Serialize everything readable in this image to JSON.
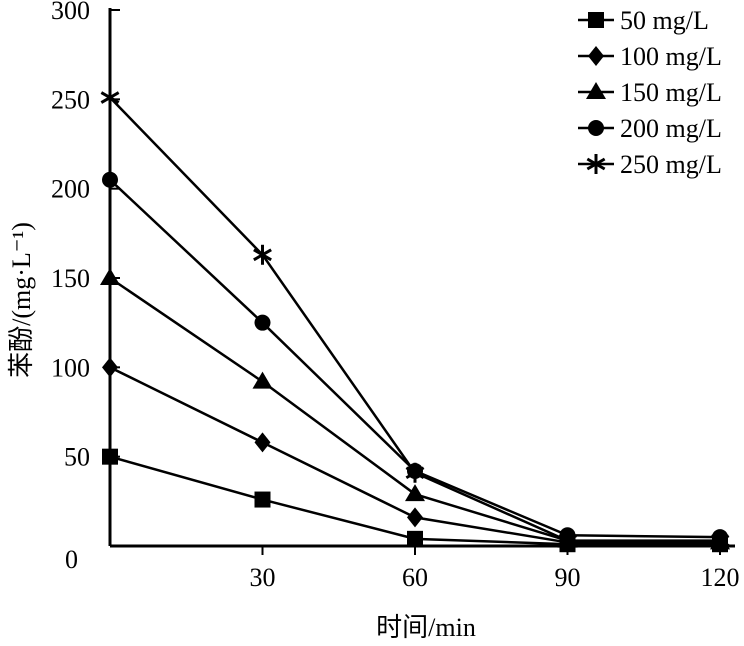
{
  "chart_data": {
    "type": "line",
    "title": "",
    "xlabel": "时间/min",
    "ylabel": "苯酚/(mg·L⁻¹)",
    "xlim": [
      0,
      120
    ],
    "ylim": [
      0,
      300
    ],
    "x_ticks": [
      30,
      60,
      90,
      120
    ],
    "y_ticks": [
      0,
      50,
      100,
      150,
      200,
      250,
      300
    ],
    "grid": false,
    "legend_position": "top-right",
    "x": [
      0,
      30,
      60,
      90,
      120
    ],
    "series": [
      {
        "name": "50 mg/L",
        "marker": "square",
        "values": [
          50,
          26,
          4,
          1,
          1
        ]
      },
      {
        "name": "100 mg/L",
        "marker": "diamond",
        "values": [
          100,
          58,
          16,
          2,
          2
        ]
      },
      {
        "name": "150 mg/L",
        "marker": "triangle",
        "values": [
          150,
          92,
          29,
          3,
          2
        ]
      },
      {
        "name": "200 mg/L",
        "marker": "circle",
        "values": [
          205,
          125,
          42,
          6,
          5
        ]
      },
      {
        "name": "250 mg/L",
        "marker": "star",
        "values": [
          251,
          163,
          41,
          3,
          3
        ]
      }
    ],
    "color": "#000000"
  }
}
